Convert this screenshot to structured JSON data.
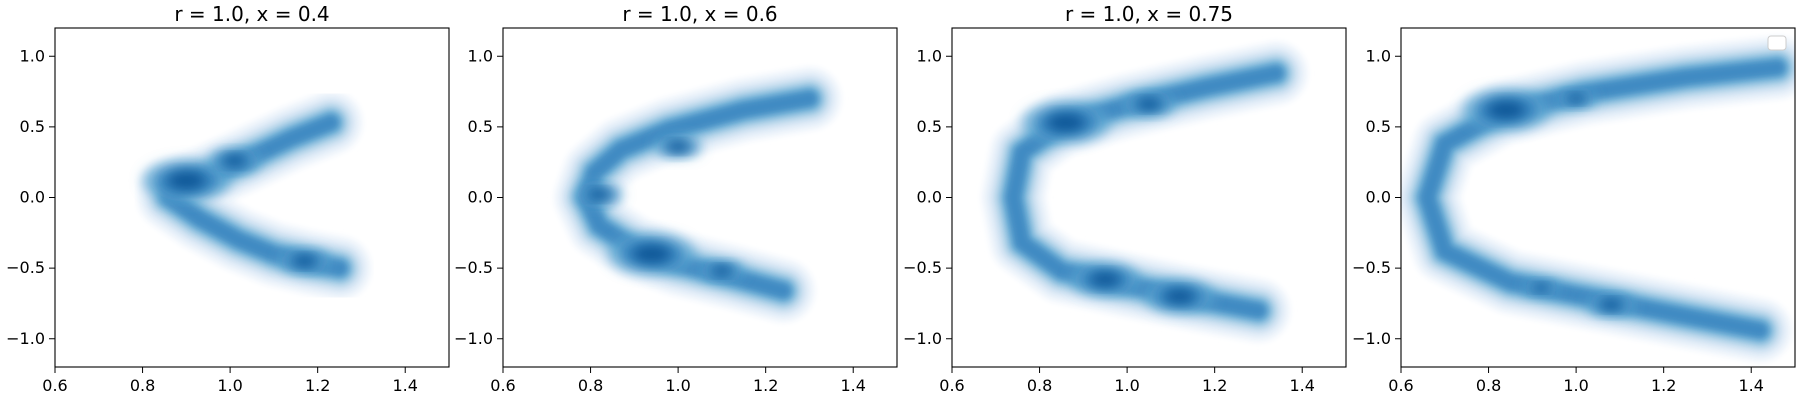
{
  "chart_data": [
    {
      "type": "contour",
      "title": "r = 1.0, x = 0.4",
      "xlim": [
        0.6,
        1.5
      ],
      "ylim": [
        -1.2,
        1.2
      ],
      "xticks": [
        "0.6",
        "0.8",
        "1.0",
        "1.2",
        "1.4"
      ],
      "yticks": [
        "1.0",
        "0.5",
        "0.0",
        "−0.5",
        "−1.0"
      ],
      "colormap": "Blues",
      "legend": false,
      "density_path": [
        [
          1.23,
          0.53
        ],
        [
          1.14,
          0.42
        ],
        [
          1.03,
          0.26
        ],
        [
          0.93,
          0.12
        ],
        [
          0.86,
          0.05
        ],
        [
          0.86,
          0.0
        ],
        [
          0.93,
          -0.15
        ],
        [
          1.02,
          -0.3
        ],
        [
          1.1,
          -0.4
        ],
        [
          1.18,
          -0.46
        ],
        [
          1.25,
          -0.5
        ]
      ],
      "hotspots": [
        [
          0.9,
          0.12,
          1.0
        ],
        [
          1.01,
          0.26,
          0.6
        ],
        [
          1.17,
          -0.45,
          0.6
        ]
      ]
    },
    {
      "type": "contour",
      "title": "r = 1.0, x = 0.6",
      "xlim": [
        0.6,
        1.5
      ],
      "ylim": [
        -1.2,
        1.2
      ],
      "xticks": [
        "0.6",
        "0.8",
        "1.0",
        "1.2",
        "1.4"
      ],
      "yticks": [
        "1.0",
        "0.5",
        "0.0",
        "−0.5",
        "−1.0"
      ],
      "colormap": "Blues",
      "legend": false,
      "density_path": [
        [
          1.3,
          0.7
        ],
        [
          1.15,
          0.62
        ],
        [
          0.98,
          0.48
        ],
        [
          0.87,
          0.34
        ],
        [
          0.81,
          0.18
        ],
        [
          0.79,
          0.0
        ],
        [
          0.82,
          -0.2
        ],
        [
          0.9,
          -0.36
        ],
        [
          1.0,
          -0.47
        ],
        [
          1.12,
          -0.56
        ],
        [
          1.24,
          -0.66
        ]
      ],
      "hotspots": [
        [
          0.94,
          -0.4,
          1.0
        ],
        [
          0.82,
          0.02,
          0.55
        ],
        [
          1.0,
          0.36,
          0.55
        ],
        [
          1.1,
          -0.52,
          0.5
        ]
      ]
    },
    {
      "type": "contour",
      "title": "r = 1.0, x = 0.75",
      "xlim": [
        0.6,
        1.5
      ],
      "ylim": [
        -1.2,
        1.2
      ],
      "xticks": [
        "0.6",
        "0.8",
        "1.0",
        "1.2",
        "1.4"
      ],
      "yticks": [
        "1.0",
        "0.5",
        "0.0",
        "−0.5",
        "−1.0"
      ],
      "colormap": "Blues",
      "legend": false,
      "density_path": [
        [
          1.34,
          0.88
        ],
        [
          1.18,
          0.78
        ],
        [
          1.0,
          0.65
        ],
        [
          0.85,
          0.52
        ],
        [
          0.76,
          0.32
        ],
        [
          0.74,
          0.0
        ],
        [
          0.76,
          -0.32
        ],
        [
          0.85,
          -0.52
        ],
        [
          1.0,
          -0.62
        ],
        [
          1.16,
          -0.72
        ],
        [
          1.3,
          -0.8
        ]
      ],
      "hotspots": [
        [
          0.86,
          0.53,
          1.0
        ],
        [
          1.05,
          0.66,
          0.6
        ],
        [
          0.95,
          -0.58,
          0.8
        ],
        [
          1.12,
          -0.7,
          0.8
        ]
      ]
    },
    {
      "type": "contour",
      "title": "",
      "xlim": [
        0.6,
        1.5
      ],
      "ylim": [
        -1.2,
        1.2
      ],
      "xticks": [
        "0.6",
        "0.8",
        "1.0",
        "1.2",
        "1.4"
      ],
      "yticks": [
        "1.0",
        "0.5",
        "0.0",
        "−0.5",
        "−1.0"
      ],
      "colormap": "Blues",
      "legend": true,
      "density_path": [
        [
          1.46,
          0.92
        ],
        [
          1.25,
          0.85
        ],
        [
          1.02,
          0.74
        ],
        [
          0.83,
          0.6
        ],
        [
          0.7,
          0.38
        ],
        [
          0.66,
          0.0
        ],
        [
          0.7,
          -0.38
        ],
        [
          0.85,
          -0.6
        ],
        [
          1.05,
          -0.72
        ],
        [
          1.25,
          -0.84
        ],
        [
          1.42,
          -0.94
        ]
      ],
      "hotspots": [
        [
          0.84,
          0.62,
          1.0
        ],
        [
          1.0,
          0.7,
          0.45
        ],
        [
          1.08,
          -0.76,
          0.55
        ],
        [
          0.92,
          -0.64,
          0.4
        ]
      ]
    }
  ]
}
